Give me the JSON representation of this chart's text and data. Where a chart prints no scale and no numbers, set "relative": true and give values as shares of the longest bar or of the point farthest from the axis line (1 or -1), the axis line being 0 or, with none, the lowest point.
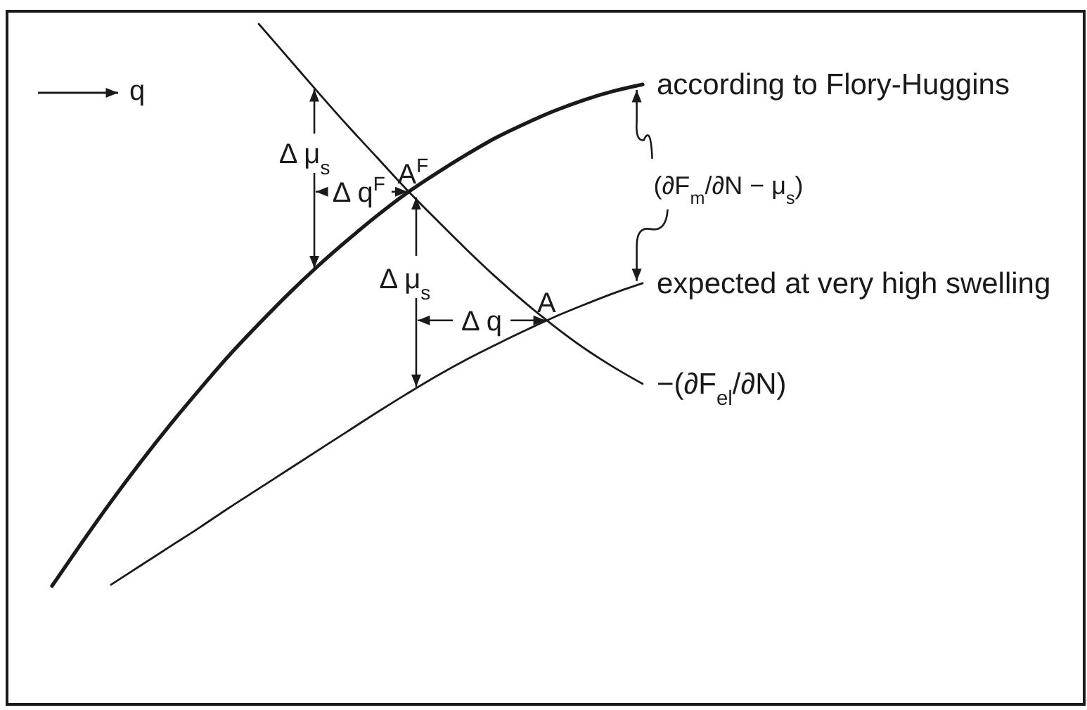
{
  "chart_data": {
    "type": "line",
    "relative": true,
    "xlabel": "q",
    "categories": [
      null,
      null,
      null,
      null,
      null,
      null,
      null,
      null,
      null,
      null,
      null,
      null,
      null,
      null,
      null,
      null,
      null,
      null,
      null,
      null,
      null
    ],
    "series": [
      {
        "name": "according to Flory-Huggins",
        "color": "#1a1a1a",
        "values": [
          0.174,
          0.237,
          0.298,
          0.356,
          0.411,
          0.463,
          0.513,
          0.559,
          0.603,
          0.644,
          0.682,
          0.718,
          0.751,
          0.78,
          0.807,
          0.832,
          0.853,
          0.872,
          0.888,
          0.901,
          0.911
        ]
      },
      {
        "name": "−(∂F$_{el}$/∂N)",
        "color": "#1a1a1a",
        "values": [
          null,
          null,
          null,
          null,
          null,
          null,
          null,
          1,
          0.95,
          0.9,
          0.851,
          0.804,
          0.757,
          0.713,
          0.67,
          0.629,
          0.591,
          0.556,
          0.524,
          0.496,
          0.471
        ]
      },
      {
        "name": "expected at very high swelling",
        "color": "#1a1a1a",
        "values": [
          null,
          null,
          0.176,
          0.204,
          0.232,
          0.26,
          0.289,
          0.317,
          0.345,
          0.373,
          0.401,
          0.429,
          0.456,
          0.482,
          0.506,
          0.528,
          0.549,
          0.569,
          0.587,
          0.604,
          0.619
        ]
      }
    ],
    "annotations": [
      "A$^{F}$",
      "A",
      "Δ μ$_{s}$",
      "Δ q$^{F}$",
      "Δ μ$_{s}$",
      "Δ q",
      "(∂F$_{m}$/∂N − μ$_{s}$)"
    ]
  }
}
